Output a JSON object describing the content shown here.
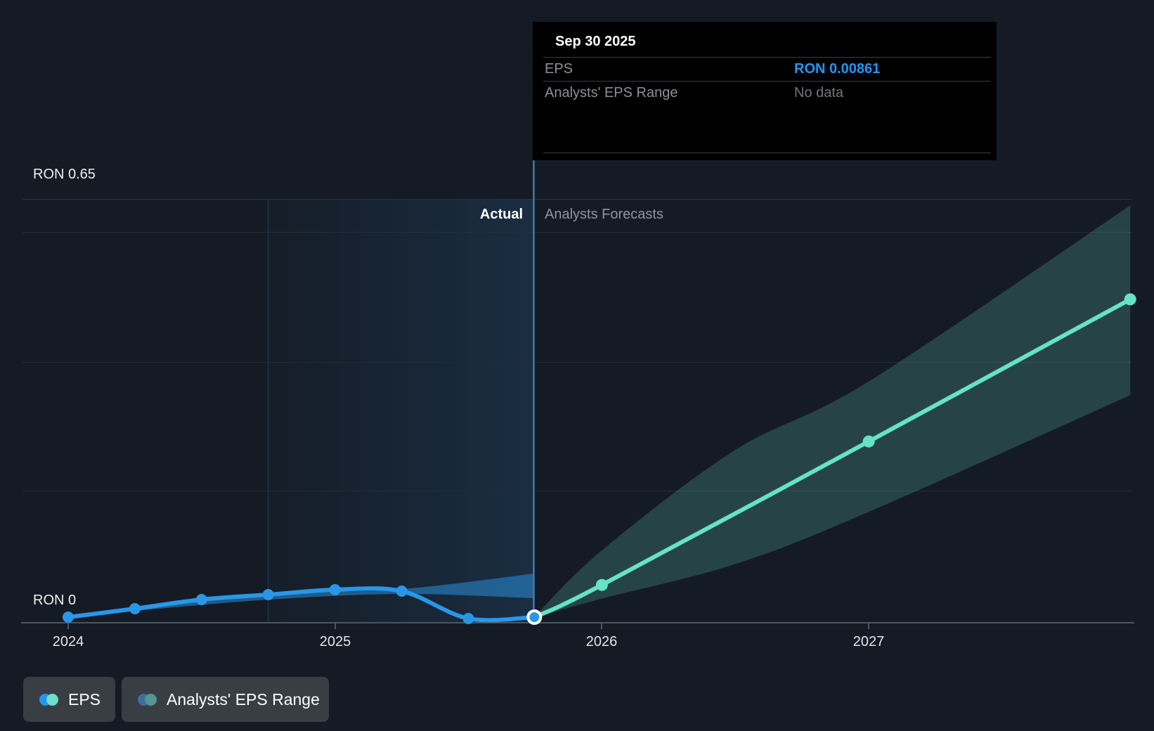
{
  "tooltip": {
    "date": "Sep 30 2025",
    "rows": [
      {
        "label": "EPS",
        "value": "RON 0.00861"
      },
      {
        "label": "Analysts' EPS Range",
        "value": "No data"
      }
    ]
  },
  "axis": {
    "y_max_label": "RON 0.65",
    "y_zero_label": "RON 0",
    "x_labels": [
      "2024",
      "2025",
      "2026",
      "2027"
    ]
  },
  "sections": {
    "actual_label": "Actual",
    "forecast_label": "Analysts Forecasts"
  },
  "legend": [
    {
      "label": "EPS"
    },
    {
      "label": "Analysts' EPS Range"
    }
  ],
  "colors": {
    "accent_blue": "#2196f3",
    "line_blue": "#2997e8",
    "line_teal": "#66e3c4",
    "band_blue": "rgba(41,151,232,0.5)",
    "band_teal": "rgba(100,214,189,0.22)",
    "divider_blue": "#4a79a4",
    "background": "#151b24"
  },
  "chart_data": {
    "type": "line",
    "title": "EPS — Actual vs Analysts Forecasts",
    "currency": "RON",
    "y_axis": {
      "min_value": 0,
      "max_value": 0.65,
      "min_label": "RON 0",
      "max_label": "RON 0.65"
    },
    "x_ticks": [
      2024,
      2025,
      2026,
      2027
    ],
    "divider_x": 2025.747,
    "highlight_point": {
      "date": "Sep 30 2025",
      "x": 2025.747,
      "eps": 0.00861
    },
    "series": [
      {
        "name": "EPS (actual)",
        "points": [
          [
            2024.0,
            0.0086
          ],
          [
            2024.25,
            0.0216
          ],
          [
            2024.5,
            0.0356
          ],
          [
            2024.75,
            0.0431
          ],
          [
            2025.0,
            0.0507
          ],
          [
            2025.25,
            0.0485
          ],
          [
            2025.5,
            0.0065
          ],
          [
            2025.747,
            0.00861
          ]
        ]
      },
      {
        "name": "EPS (analysts forecast)",
        "points": [
          [
            2025.747,
            0.00861
          ],
          [
            2026.0,
            0.058
          ],
          [
            2027.0,
            0.278
          ],
          [
            2027.98,
            0.496
          ]
        ]
      }
    ],
    "bands": [
      {
        "name": "Analysts' EPS Range (actual period)",
        "upper": [
          [
            2024.25,
            0.0226
          ],
          [
            2024.75,
            0.0442
          ],
          [
            2025.25,
            0.0517
          ],
          [
            2025.747,
            0.0754
          ]
        ],
        "lower": [
          [
            2024.25,
            0.0183
          ],
          [
            2024.75,
            0.0355
          ],
          [
            2025.25,
            0.0442
          ],
          [
            2025.747,
            0.0377
          ]
        ]
      },
      {
        "name": "Analysts' EPS Range (forecast)",
        "upper": [
          [
            2025.747,
            0.009
          ],
          [
            2026.0,
            0.111
          ],
          [
            2026.5,
            0.265
          ],
          [
            2027.0,
            0.37
          ],
          [
            2027.98,
            0.64
          ]
        ],
        "lower": [
          [
            2025.747,
            0.008
          ],
          [
            2026.0,
            0.037
          ],
          [
            2026.5,
            0.09
          ],
          [
            2027.0,
            0.17
          ],
          [
            2027.98,
            0.349
          ]
        ]
      }
    ]
  }
}
